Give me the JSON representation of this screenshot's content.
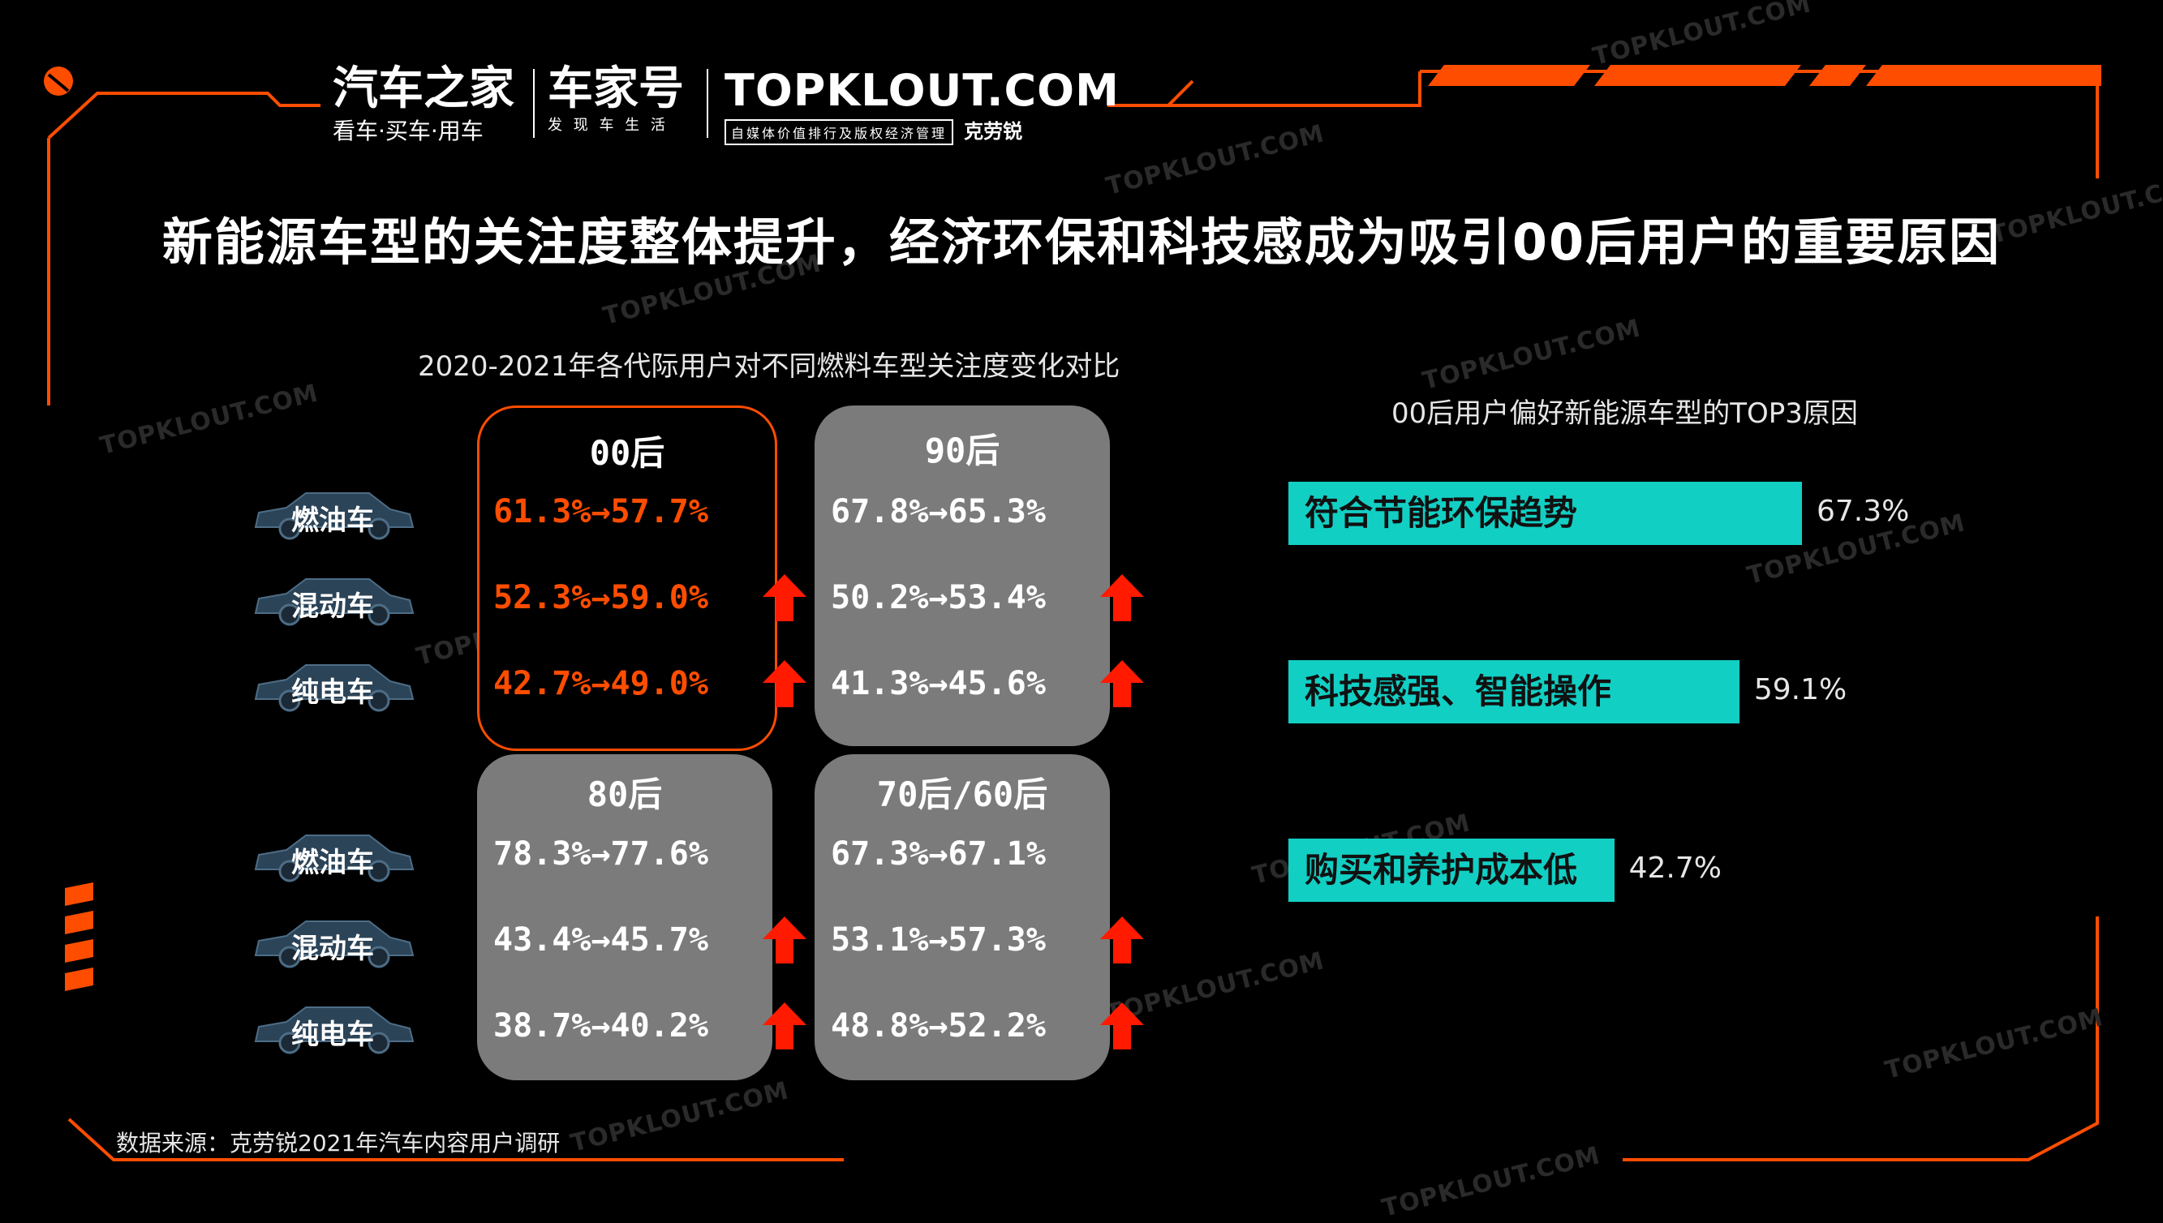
{
  "header": {
    "logo_autohome": "汽车之家",
    "logo_autohome_sub": "看车·买车·用车",
    "logo_chejiahao": "车家号",
    "logo_chejiahao_sub": "发 现 车 生 活",
    "logo_topklout": "TOPKLOUT.COM",
    "logo_topklout_sub": "自媒体价值排行及版权经济管理",
    "logo_topklout_cn": "克劳锐"
  },
  "title": "新能源车型的关注度整体提升，经济环保和科技感成为吸引00后用户的重要原因",
  "left_chart": {
    "subtitle": "2020-2021年各代际用户对不同燃料车型关注度变化对比"
  },
  "right_chart": {
    "subtitle": "00后用户偏好新能源车型的TOP3原因"
  },
  "car_labels": {
    "fuel": "燃油车",
    "hybrid": "混动车",
    "electric": "纯电车"
  },
  "source": "数据来源：克劳锐2021年汽车内容用户调研",
  "watermark": "TOPKLOUT.COM",
  "colors": {
    "accent": "#ff4d00",
    "card_gray": "#7b7b7b",
    "bar": "#12cfc4",
    "arrow_up": "#ff1a00"
  },
  "chart_data": [
    {
      "type": "table",
      "title": "2020-2021年各代际用户对不同燃料车型关注度变化对比",
      "columns": [
        "燃油车",
        "混动车",
        "纯电车"
      ],
      "groups": [
        {
          "name": "00后",
          "highlight": true,
          "rows": [
            {
              "car": "燃油车",
              "y2020": "61.3%",
              "y2021": "57.7%",
              "text": "61.3%→57.7%",
              "up": false
            },
            {
              "car": "混动车",
              "y2020": "52.3%",
              "y2021": "59.0%",
              "text": "52.3%→59.0%",
              "up": true
            },
            {
              "car": "纯电车",
              "y2020": "42.7%",
              "y2021": "49.0%",
              "text": "42.7%→49.0%",
              "up": true
            }
          ]
        },
        {
          "name": "90后",
          "highlight": false,
          "rows": [
            {
              "car": "燃油车",
              "y2020": "67.8%",
              "y2021": "65.3%",
              "text": "67.8%→65.3%",
              "up": false
            },
            {
              "car": "混动车",
              "y2020": "50.2%",
              "y2021": "53.4%",
              "text": "50.2%→53.4%",
              "up": true
            },
            {
              "car": "纯电车",
              "y2020": "41.3%",
              "y2021": "45.6%",
              "text": "41.3%→45.6%",
              "up": true
            }
          ]
        },
        {
          "name": "80后",
          "highlight": false,
          "rows": [
            {
              "car": "燃油车",
              "y2020": "78.3%",
              "y2021": "77.6%",
              "text": "78.3%→77.6%",
              "up": false
            },
            {
              "car": "混动车",
              "y2020": "43.4%",
              "y2021": "45.7%",
              "text": "43.4%→45.7%",
              "up": true
            },
            {
              "car": "纯电车",
              "y2020": "38.7%",
              "y2021": "40.2%",
              "text": "38.7%→40.2%",
              "up": true
            }
          ]
        },
        {
          "name": "70后/60后",
          "highlight": false,
          "rows": [
            {
              "car": "燃油车",
              "y2020": "67.3%",
              "y2021": "67.1%",
              "text": "67.3%→67.1%",
              "up": false
            },
            {
              "car": "混动车",
              "y2020": "53.1%",
              "y2021": "57.3%",
              "text": "53.1%→57.3%",
              "up": true
            },
            {
              "car": "纯电车",
              "y2020": "48.8%",
              "y2021": "52.2%",
              "text": "48.8%→52.2%",
              "up": true
            }
          ]
        }
      ]
    },
    {
      "type": "bar",
      "orientation": "horizontal",
      "title": "00后用户偏好新能源车型的TOP3原因",
      "categories": [
        "符合节能环保趋势",
        "科技感强、智能操作",
        "购买和养护成本低"
      ],
      "values": [
        67.3,
        59.1,
        42.7
      ],
      "value_labels": [
        "67.3%",
        "59.1%",
        "42.7%"
      ],
      "unit": "%"
    }
  ]
}
